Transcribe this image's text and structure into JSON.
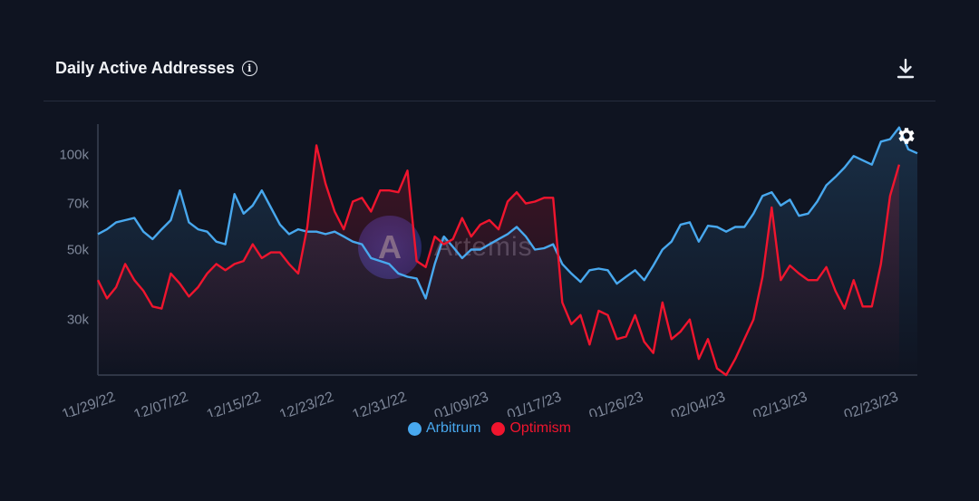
{
  "header": {
    "title": "Daily Active Addresses"
  },
  "icons": {
    "info": "info-icon",
    "download": "download-icon",
    "settings": "gear-icon"
  },
  "watermark": {
    "text": "Artemis"
  },
  "legend": [
    {
      "name": "Arbitrum",
      "color": "#48a8ee"
    },
    {
      "name": "Optimism",
      "color": "#f0152e"
    }
  ],
  "chart_data": {
    "type": "line",
    "title": "Daily Active Addresses",
    "y_scale": "log",
    "ylim": [
      20000,
      125000
    ],
    "y_ticks": [
      {
        "value": 30000,
        "label": "30k"
      },
      {
        "value": 50000,
        "label": "50k"
      },
      {
        "value": 70000,
        "label": "70k"
      },
      {
        "value": 100000,
        "label": "100k"
      }
    ],
    "x_tick_labels": [
      "11/29/22",
      "12/07/22",
      "12/15/22",
      "12/23/22",
      "12/31/22",
      "01/09/23",
      "01/17/23",
      "01/26/23",
      "02/04/23",
      "02/13/23",
      "02/23/23"
    ],
    "x_tick_index": [
      2,
      10,
      18,
      26,
      34,
      43,
      51,
      60,
      69,
      78,
      88
    ],
    "grid": false,
    "legend_position": "bottom-center",
    "series": [
      {
        "name": "Arbitrum",
        "color": "#48a8ee",
        "values": [
          56000,
          58000,
          61000,
          62000,
          63000,
          57000,
          54000,
          58000,
          62000,
          77000,
          61000,
          58000,
          57000,
          53000,
          52000,
          75000,
          65000,
          69000,
          77000,
          68000,
          60000,
          56000,
          58000,
          57000,
          57000,
          56000,
          57000,
          55000,
          53000,
          52000,
          47000,
          46000,
          45000,
          42000,
          41000,
          40500,
          35000,
          45000,
          55000,
          51000,
          47000,
          50000,
          50000,
          52000,
          54000,
          56000,
          59000,
          55000,
          50000,
          50500,
          52000,
          45000,
          42000,
          39500,
          43000,
          43500,
          43000,
          39000,
          41000,
          43000,
          40000,
          44500,
          50000,
          53000,
          60000,
          61000,
          53000,
          59500,
          59000,
          57000,
          59000,
          59000,
          65000,
          74000,
          76000,
          69000,
          72000,
          64000,
          65000,
          71000,
          80000,
          85000,
          91000,
          99000,
          96000,
          93000,
          110000,
          112000,
          122000,
          104000,
          101000
        ]
      },
      {
        "name": "Optimism",
        "color": "#f0152e",
        "values": [
          40000,
          35000,
          38000,
          45000,
          40000,
          37000,
          33000,
          32500,
          42000,
          39000,
          35500,
          38000,
          42000,
          45000,
          43000,
          45000,
          46000,
          52000,
          47000,
          49000,
          49000,
          45000,
          42000,
          59000,
          107000,
          81000,
          66000,
          58000,
          71000,
          73000,
          66000,
          77000,
          77000,
          76000,
          89000,
          46000,
          44000,
          55000,
          52000,
          54000,
          63000,
          55000,
          60000,
          62000,
          58000,
          71000,
          76000,
          70000,
          71000,
          73000,
          73000,
          34000,
          29000,
          31000,
          25000,
          32000,
          31000,
          26000,
          26500,
          31000,
          25500,
          23500,
          34000,
          26000,
          27500,
          30000,
          22500,
          26000,
          21000,
          20000,
          22500,
          26000,
          30000,
          41000,
          68000,
          40000,
          44500,
          42000,
          40000,
          40000,
          44000,
          37000,
          32500,
          40000,
          33000,
          33000,
          45000,
          74000,
          93000
        ]
      }
    ]
  }
}
